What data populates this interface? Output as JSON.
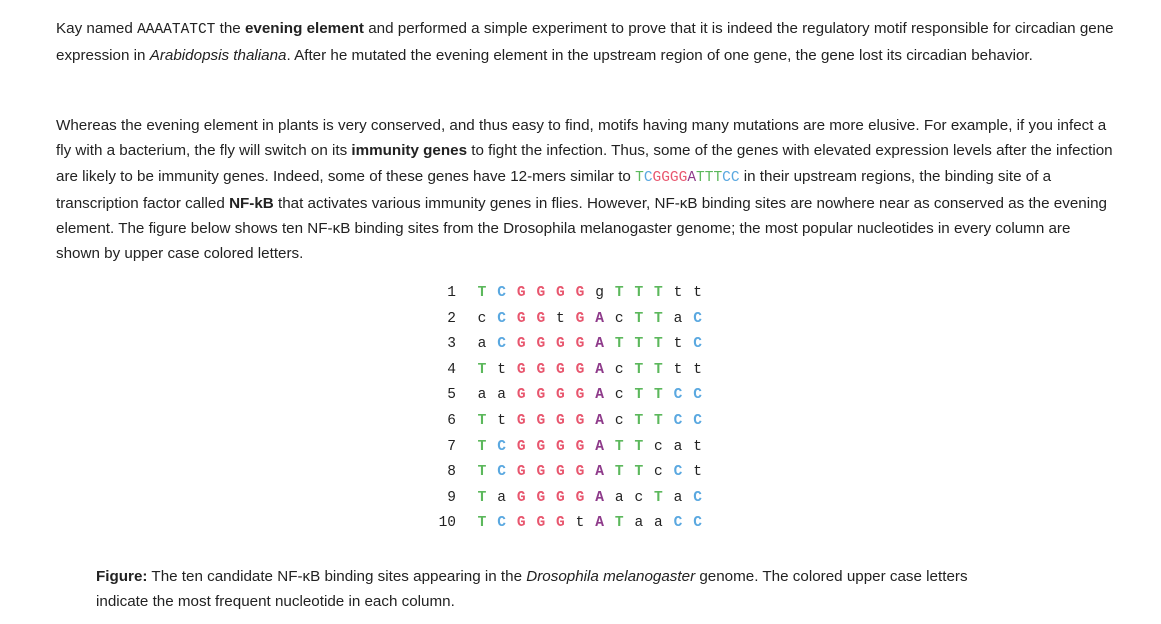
{
  "colors": {
    "T": "#5cb85c",
    "C": "#5aa8e0",
    "G": "#e8566e",
    "A": "#8e3a8a",
    "lower": "#222222"
  },
  "p1": {
    "t1": "Kay named ",
    "motif": "AAAATATCT",
    "t2": " the ",
    "bold1": "evening element",
    "t3": " and performed a simple experiment to prove that it is indeed the regulatory motif responsible for circadian gene expression in ",
    "italic1": "Arabidopsis thaliana",
    "t4": ". After he mutated the evening element in the upstream region of one gene, the gene lost its circadian behavior."
  },
  "p2": {
    "t1": "Whereas the evening element in plants is very conserved, and thus easy to find, motifs having many mutations are more elusive. For example, if you infect a fly with a bacterium, the fly will switch on its ",
    "bold1": "immunity genes",
    "t2": " to fight the infection. Thus, some of the genes with elevated expression levels after the infection are likely to be immunity genes. Indeed, some of these genes have 12-mers similar to ",
    "t3": " in their upstream regions, the binding site of a transcription factor called ",
    "bold2": "NF-kB",
    "t4": " that activates various immunity genes in flies. However, NF-κB binding sites are nowhere near as conserved as the evening element. The figure below shows ten NF-κB binding sites from the Drosophila melanogaster genome; the most popular nucleotides in every column are shown by upper case colored letters."
  },
  "consensus": [
    "T",
    "C",
    "G",
    "G",
    "G",
    "G",
    "A",
    "T",
    "T",
    "T",
    "C",
    "C"
  ],
  "rows": [
    {
      "num": "1",
      "seq": [
        "T",
        "C",
        "G",
        "G",
        "G",
        "G",
        "g",
        "T",
        "T",
        "T",
        "t",
        "t"
      ]
    },
    {
      "num": "2",
      "seq": [
        "c",
        "C",
        "G",
        "G",
        "t",
        "G",
        "A",
        "c",
        "T",
        "T",
        "a",
        "C"
      ]
    },
    {
      "num": "3",
      "seq": [
        "a",
        "C",
        "G",
        "G",
        "G",
        "G",
        "A",
        "T",
        "T",
        "T",
        "t",
        "C"
      ]
    },
    {
      "num": "4",
      "seq": [
        "T",
        "t",
        "G",
        "G",
        "G",
        "G",
        "A",
        "c",
        "T",
        "T",
        "t",
        "t"
      ]
    },
    {
      "num": "5",
      "seq": [
        "a",
        "a",
        "G",
        "G",
        "G",
        "G",
        "A",
        "c",
        "T",
        "T",
        "C",
        "C"
      ]
    },
    {
      "num": "6",
      "seq": [
        "T",
        "t",
        "G",
        "G",
        "G",
        "G",
        "A",
        "c",
        "T",
        "T",
        "C",
        "C"
      ]
    },
    {
      "num": "7",
      "seq": [
        "T",
        "C",
        "G",
        "G",
        "G",
        "G",
        "A",
        "T",
        "T",
        "c",
        "a",
        "t"
      ]
    },
    {
      "num": "8",
      "seq": [
        "T",
        "C",
        "G",
        "G",
        "G",
        "G",
        "A",
        "T",
        "T",
        "c",
        "C",
        "t"
      ]
    },
    {
      "num": "9",
      "seq": [
        "T",
        "a",
        "G",
        "G",
        "G",
        "G",
        "A",
        "a",
        "c",
        "T",
        "a",
        "C"
      ]
    },
    {
      "num": "10",
      "seq": [
        "T",
        "C",
        "G",
        "G",
        "G",
        "t",
        "A",
        "T",
        "a",
        "a",
        "C",
        "C"
      ]
    }
  ],
  "caption": {
    "label": "Figure:",
    "t1": " The ten candidate NF-κB binding sites appearing in the ",
    "italic1": "Drosophila melanogaster",
    "t2": " genome. The colored upper case letters indicate the most frequent nucleotide in each column."
  }
}
